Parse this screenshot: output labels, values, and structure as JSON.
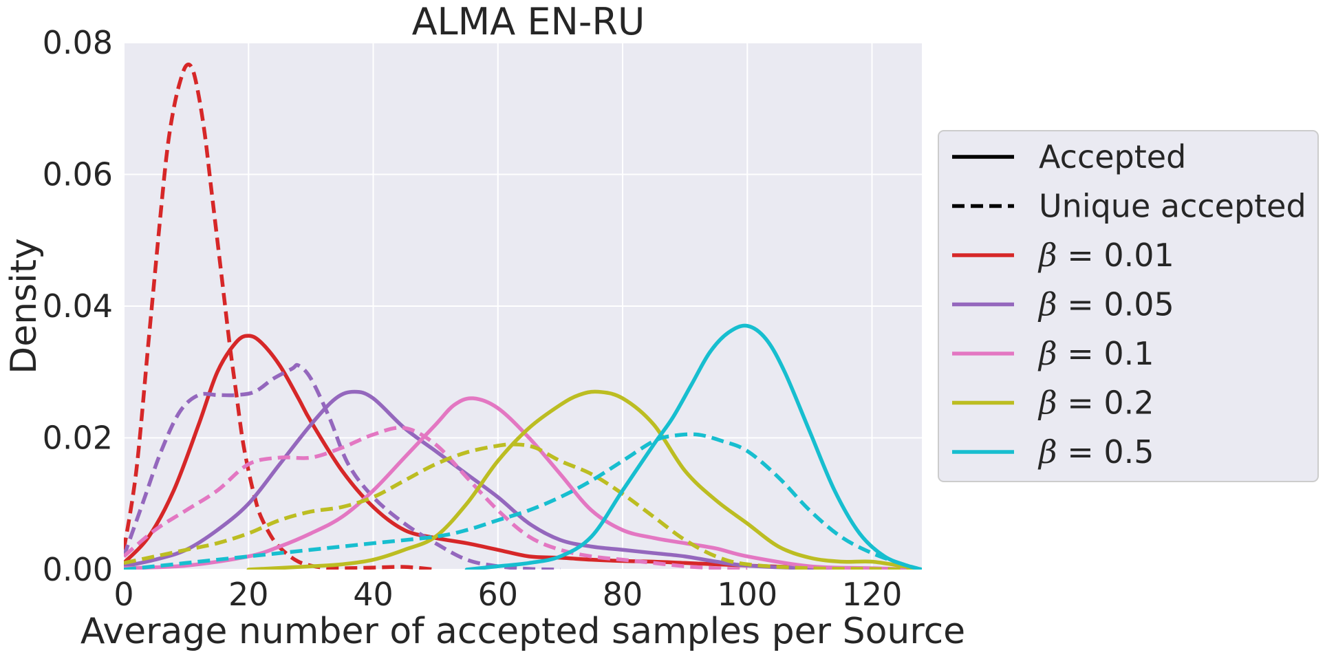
{
  "chart_data": {
    "type": "line",
    "title": "ALMA EN-RU",
    "xlabel": "Average number of accepted samples per Source",
    "ylabel": "Density",
    "xlim": [
      0,
      128
    ],
    "ylim": [
      0,
      0.08
    ],
    "xticks": [
      0,
      20,
      40,
      60,
      80,
      100,
      120
    ],
    "xtick_labels": [
      "0",
      "20",
      "40",
      "60",
      "80",
      "100",
      "120"
    ],
    "yticks": [
      0,
      0.02,
      0.04,
      0.06,
      0.08
    ],
    "ytick_labels": [
      "0.00",
      "0.02",
      "0.04",
      "0.06",
      "0.08"
    ],
    "grid": true,
    "legend_position": "right-outside",
    "legend": [
      {
        "label": "Accepted",
        "color": "#000000",
        "dash": "solid"
      },
      {
        "label": "Unique accepted",
        "color": "#000000",
        "dash": "dashed"
      },
      {
        "label_prefix": "β",
        "label": " = 0.01",
        "color": "#d62728",
        "dash": "solid"
      },
      {
        "label_prefix": "β",
        "label": " = 0.05",
        "color": "#9467bd",
        "dash": "solid"
      },
      {
        "label_prefix": "β",
        "label": " = 0.1",
        "color": "#e377c2",
        "dash": "solid"
      },
      {
        "label_prefix": "β",
        "label": " = 0.2",
        "color": "#bcbd22",
        "dash": "solid"
      },
      {
        "label_prefix": "β",
        "label": " = 0.5",
        "color": "#17becf",
        "dash": "solid"
      }
    ],
    "series": [
      {
        "beta": 0.01,
        "kind": "Unique accepted",
        "color": "#d62728",
        "dash": "dashed",
        "x": [
          0,
          2,
          4,
          6,
          7,
          8,
          9,
          10,
          11,
          12,
          13,
          14,
          15,
          16,
          17,
          18,
          19,
          20,
          21,
          22,
          24,
          26,
          28,
          30,
          32,
          35,
          40,
          45,
          50
        ],
        "y": [
          0.003,
          0.015,
          0.035,
          0.055,
          0.064,
          0.07,
          0.074,
          0.0765,
          0.076,
          0.072,
          0.066,
          0.058,
          0.05,
          0.042,
          0.034,
          0.027,
          0.02,
          0.015,
          0.011,
          0.008,
          0.0045,
          0.0025,
          0.0012,
          0.0006,
          0.0003,
          0.0002,
          0.0003,
          0.0004,
          0.0
        ]
      },
      {
        "beta": 0.01,
        "kind": "Accepted",
        "color": "#d62728",
        "dash": "solid",
        "x": [
          0,
          4,
          8,
          12,
          15,
          18,
          20,
          22,
          25,
          28,
          30,
          35,
          40,
          45,
          50,
          55,
          60,
          65,
          70,
          75,
          80,
          85,
          90,
          95,
          100,
          110,
          120,
          128
        ],
        "y": [
          0.001,
          0.005,
          0.012,
          0.022,
          0.03,
          0.0345,
          0.0355,
          0.0345,
          0.031,
          0.026,
          0.0225,
          0.015,
          0.0095,
          0.006,
          0.0048,
          0.004,
          0.003,
          0.002,
          0.0018,
          0.0015,
          0.0013,
          0.0012,
          0.001,
          0.0008,
          0.0006,
          0.0003,
          0.0001,
          0.0
        ]
      },
      {
        "beta": 0.05,
        "kind": "Unique accepted",
        "color": "#9467bd",
        "dash": "dashed",
        "x": [
          0,
          3,
          6,
          9,
          12,
          15,
          18,
          21,
          24,
          27,
          28,
          30,
          33,
          36,
          40,
          45,
          50,
          55,
          60,
          65,
          70
        ],
        "y": [
          0.002,
          0.01,
          0.018,
          0.024,
          0.0265,
          0.0265,
          0.0265,
          0.027,
          0.029,
          0.0305,
          0.031,
          0.029,
          0.023,
          0.016,
          0.011,
          0.007,
          0.004,
          0.0015,
          0.0005,
          0.0001,
          0.0
        ]
      },
      {
        "beta": 0.05,
        "kind": "Accepted",
        "color": "#9467bd",
        "dash": "solid",
        "x": [
          0,
          5,
          10,
          15,
          20,
          25,
          30,
          34,
          37,
          40,
          45,
          50,
          55,
          60,
          65,
          70,
          75,
          80,
          85,
          90,
          95,
          100,
          110,
          120,
          128
        ],
        "y": [
          0.0005,
          0.0015,
          0.003,
          0.006,
          0.01,
          0.016,
          0.022,
          0.026,
          0.027,
          0.026,
          0.0215,
          0.018,
          0.0145,
          0.011,
          0.007,
          0.0045,
          0.0035,
          0.003,
          0.0025,
          0.002,
          0.0012,
          0.0006,
          0.0002,
          0.0001,
          0.0
        ]
      },
      {
        "beta": 0.1,
        "kind": "Unique accepted",
        "color": "#e377c2",
        "dash": "dashed",
        "x": [
          0,
          5,
          10,
          15,
          20,
          25,
          30,
          35,
          40,
          45,
          50,
          55,
          60,
          65,
          70,
          75,
          80,
          85,
          90,
          95,
          100
        ],
        "y": [
          0.002,
          0.006,
          0.009,
          0.012,
          0.016,
          0.017,
          0.017,
          0.0185,
          0.0205,
          0.0215,
          0.019,
          0.014,
          0.009,
          0.005,
          0.003,
          0.002,
          0.0015,
          0.001,
          0.0005,
          0.0002,
          0.0
        ]
      },
      {
        "beta": 0.1,
        "kind": "Accepted",
        "color": "#e377c2",
        "dash": "solid",
        "x": [
          0,
          10,
          20,
          25,
          30,
          35,
          40,
          45,
          50,
          53,
          56,
          60,
          65,
          70,
          75,
          80,
          85,
          90,
          95,
          100,
          110,
          120,
          128
        ],
        "y": [
          0.0002,
          0.0006,
          0.002,
          0.0035,
          0.0055,
          0.008,
          0.012,
          0.017,
          0.022,
          0.025,
          0.026,
          0.0245,
          0.02,
          0.0145,
          0.009,
          0.006,
          0.0048,
          0.004,
          0.0032,
          0.002,
          0.0005,
          0.0002,
          0.0
        ]
      },
      {
        "beta": 0.2,
        "kind": "Unique accepted",
        "color": "#bcbd22",
        "dash": "dashed",
        "x": [
          0,
          5,
          10,
          15,
          20,
          25,
          30,
          35,
          40,
          45,
          50,
          55,
          60,
          63,
          66,
          70,
          75,
          80,
          85,
          90,
          95,
          100,
          110,
          120,
          128
        ],
        "y": [
          0.001,
          0.002,
          0.003,
          0.004,
          0.0055,
          0.0075,
          0.0088,
          0.0095,
          0.011,
          0.0135,
          0.016,
          0.0178,
          0.0188,
          0.019,
          0.0185,
          0.0165,
          0.0145,
          0.0115,
          0.008,
          0.0045,
          0.002,
          0.0008,
          0.0002,
          0.0001,
          0.0
        ]
      },
      {
        "beta": 0.2,
        "kind": "Accepted",
        "color": "#bcbd22",
        "dash": "solid",
        "x": [
          20,
          30,
          35,
          40,
          45,
          50,
          55,
          60,
          65,
          70,
          73,
          76,
          80,
          85,
          90,
          95,
          100,
          105,
          110,
          115,
          120,
          125,
          128
        ],
        "y": [
          0.0,
          0.0005,
          0.0008,
          0.0015,
          0.003,
          0.005,
          0.01,
          0.0165,
          0.0215,
          0.025,
          0.0265,
          0.027,
          0.026,
          0.022,
          0.015,
          0.0105,
          0.007,
          0.0035,
          0.0018,
          0.0012,
          0.0012,
          0.0005,
          0.0
        ]
      },
      {
        "beta": 0.5,
        "kind": "Unique accepted",
        "color": "#17becf",
        "dash": "dashed",
        "x": [
          0,
          10,
          20,
          30,
          40,
          50,
          55,
          60,
          65,
          70,
          75,
          80,
          85,
          88,
          92,
          96,
          100,
          105,
          110,
          115,
          120,
          125,
          128
        ],
        "y": [
          0.0,
          0.001,
          0.002,
          0.003,
          0.004,
          0.005,
          0.006,
          0.0075,
          0.009,
          0.011,
          0.0135,
          0.0165,
          0.0195,
          0.0203,
          0.0205,
          0.0195,
          0.018,
          0.014,
          0.009,
          0.005,
          0.0025,
          0.0008,
          0.0
        ]
      },
      {
        "beta": 0.5,
        "kind": "Accepted",
        "color": "#17becf",
        "dash": "solid",
        "x": [
          55,
          60,
          65,
          70,
          75,
          80,
          85,
          88,
          91,
          94,
          97,
          100,
          103,
          106,
          110,
          114,
          118,
          122,
          126,
          128
        ],
        "y": [
          0.0,
          0.0005,
          0.001,
          0.002,
          0.005,
          0.012,
          0.019,
          0.023,
          0.028,
          0.033,
          0.036,
          0.037,
          0.035,
          0.03,
          0.021,
          0.012,
          0.0055,
          0.002,
          0.0005,
          0.0
        ]
      }
    ]
  }
}
